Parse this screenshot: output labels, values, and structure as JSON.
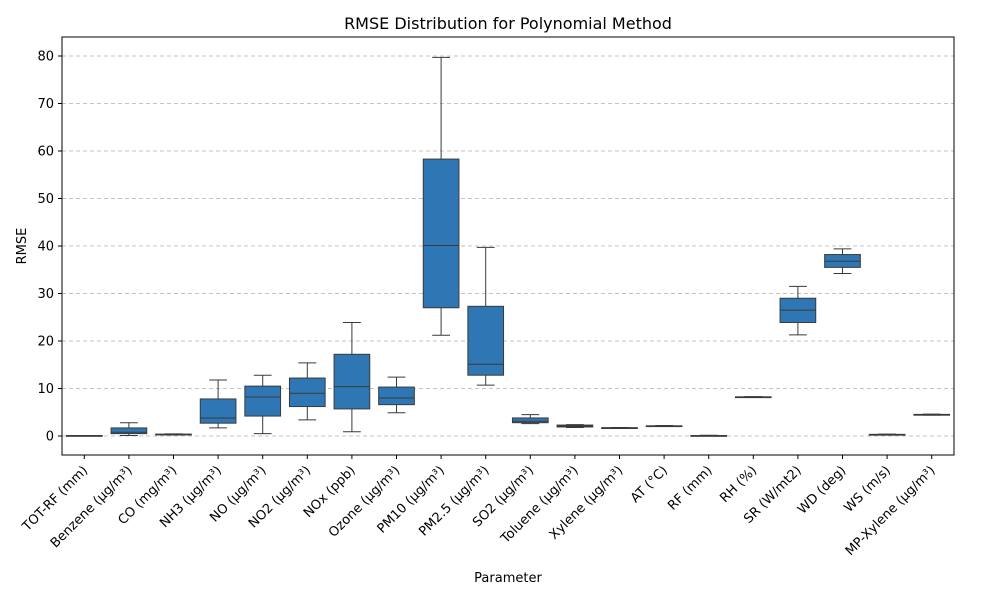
{
  "chart_data": {
    "type": "box",
    "title": "RMSE Distribution for Polynomial Method",
    "xlabel": "Parameter",
    "ylabel": "RMSE",
    "ylim": [
      -4,
      84
    ],
    "yticks": [
      0,
      10,
      20,
      30,
      40,
      50,
      60,
      70,
      80
    ],
    "grid": "y-dashed",
    "box_color": "#2f77b4",
    "line_color": "#3a3a3a",
    "categories": [
      "TOT-RF (mm)",
      "Benzene (μg/m³)",
      "CO (mg/m³)",
      "NH3 (μg/m³)",
      "NO (μg/m³)",
      "NO2 (μg/m³)",
      "NOx (ppb)",
      "Ozone (μg/m³)",
      "PM10 (μg/m³)",
      "PM2.5 (μg/m³)",
      "SO2 (μg/m³)",
      "Toluene (μg/m³)",
      "Xylene (μg/m³)",
      "AT (°C)",
      "RF (mm)",
      "RH (%)",
      "SR (W/mt2)",
      "WD (deg)",
      "WS (m/s)",
      "MP-Xylene (μg/m³)"
    ],
    "boxes": [
      {
        "min": 0.0,
        "q1": 0.0,
        "median": 0.0,
        "q3": 0.1,
        "max": 0.1
      },
      {
        "min": 0.1,
        "q1": 0.5,
        "median": 0.8,
        "q3": 1.7,
        "max": 2.8
      },
      {
        "min": 0.2,
        "q1": 0.25,
        "median": 0.3,
        "q3": 0.4,
        "max": 0.45
      },
      {
        "min": 1.7,
        "q1": 2.7,
        "median": 3.8,
        "q3": 7.8,
        "max": 11.8
      },
      {
        "min": 0.5,
        "q1": 4.2,
        "median": 8.2,
        "q3": 10.5,
        "max": 12.8
      },
      {
        "min": 3.4,
        "q1": 6.2,
        "median": 9.0,
        "q3": 12.2,
        "max": 15.4
      },
      {
        "min": 0.9,
        "q1": 5.7,
        "median": 10.4,
        "q3": 17.2,
        "max": 23.9
      },
      {
        "min": 4.9,
        "q1": 6.6,
        "median": 8.0,
        "q3": 10.3,
        "max": 12.4
      },
      {
        "min": 21.2,
        "q1": 27.0,
        "median": 40.1,
        "q3": 58.3,
        "max": 79.7
      },
      {
        "min": 10.7,
        "q1": 12.8,
        "median": 15.1,
        "q3": 27.3,
        "max": 39.7
      },
      {
        "min": 2.6,
        "q1": 2.8,
        "median": 3.1,
        "q3": 3.8,
        "max": 4.5
      },
      {
        "min": 1.8,
        "q1": 1.9,
        "median": 2.1,
        "q3": 2.3,
        "max": 2.4
      },
      {
        "min": 1.6,
        "q1": 1.65,
        "median": 1.7,
        "q3": 1.75,
        "max": 1.8
      },
      {
        "min": 2.0,
        "q1": 2.05,
        "median": 2.1,
        "q3": 2.15,
        "max": 2.2
      },
      {
        "min": 0.0,
        "q1": 0.0,
        "median": 0.05,
        "q3": 0.1,
        "max": 0.15
      },
      {
        "min": 8.1,
        "q1": 8.15,
        "median": 8.2,
        "q3": 8.25,
        "max": 8.3
      },
      {
        "min": 21.3,
        "q1": 23.9,
        "median": 26.5,
        "q3": 29.0,
        "max": 31.5
      },
      {
        "min": 34.2,
        "q1": 35.5,
        "median": 36.8,
        "q3": 38.2,
        "max": 39.4
      },
      {
        "min": 0.2,
        "q1": 0.25,
        "median": 0.3,
        "q3": 0.35,
        "max": 0.4
      },
      {
        "min": 4.4,
        "q1": 4.45,
        "median": 4.5,
        "q3": 4.55,
        "max": 4.6
      }
    ]
  }
}
